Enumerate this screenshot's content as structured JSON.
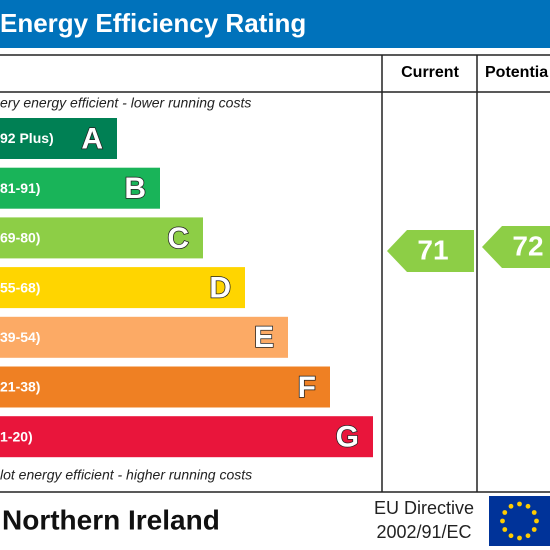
{
  "header": {
    "title": "Energy Efficiency Rating"
  },
  "columns": {
    "current": "Current",
    "potential": "Potentia"
  },
  "top_note": "ery energy efficient - lower running costs",
  "bottom_note": "lot energy efficient - higher running costs",
  "bands": [
    {
      "range": "92 Plus)",
      "letter": "A"
    },
    {
      "range": "81-91)",
      "letter": "B"
    },
    {
      "range": "69-80)",
      "letter": "C"
    },
    {
      "range": "55-68)",
      "letter": "D"
    },
    {
      "range": "39-54)",
      "letter": "E"
    },
    {
      "range": "21-38)",
      "letter": "F"
    },
    {
      "range": "1-20)",
      "letter": "G"
    }
  ],
  "ratings": {
    "current": "71",
    "potential": "72"
  },
  "footer": {
    "region": "Northern Ireland",
    "directive_line1": "EU Directive",
    "directive_line2": "2002/91/EC"
  }
}
